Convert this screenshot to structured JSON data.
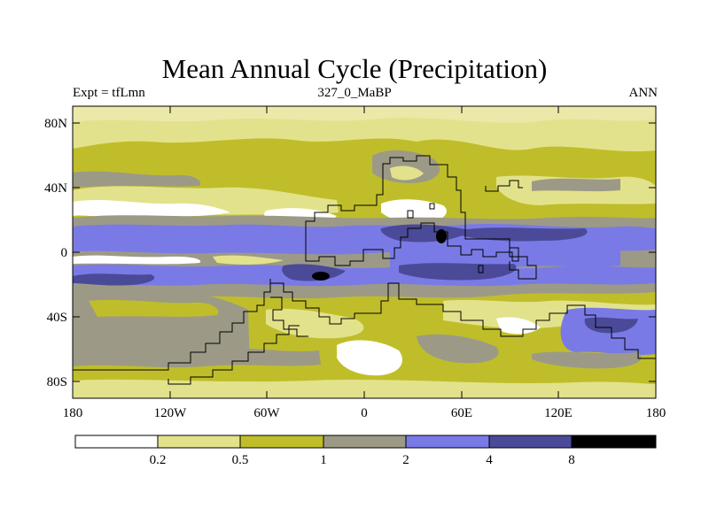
{
  "title": "Mean Annual Cycle (Precipitation)",
  "subtitle_left": "Expt = tfLmn",
  "subtitle_center": "327_0_MaBP",
  "subtitle_right": "ANN",
  "axes": {
    "lat_labels": [
      "80N",
      "40N",
      "0",
      "40S",
      "80S"
    ],
    "lat_values": [
      80,
      40,
      0,
      -40,
      -80
    ],
    "lon_labels": [
      "180",
      "120W",
      "60W",
      "0",
      "60E",
      "120E",
      "180"
    ],
    "lon_values": [
      -180,
      -120,
      -60,
      0,
      60,
      120,
      180
    ],
    "lat_range": [
      -90,
      90
    ],
    "lon_range": [
      -180,
      180
    ]
  },
  "legend": {
    "levels": [
      "0.2",
      "0.5",
      "1",
      "2",
      "4",
      "8"
    ],
    "colors": [
      "#ffffff",
      "#e3e28c",
      "#bfbe2a",
      "#9c9a86",
      "#7a7ae6",
      "#4a4a98",
      "#000000"
    ]
  },
  "colors": {
    "white": "#ffffff",
    "pale": "#e3e28c",
    "olive": "#bfbe2a",
    "gray": "#9c9a86",
    "blue": "#7a7ae6",
    "darkblue": "#4a4a98",
    "black": "#000000"
  }
}
